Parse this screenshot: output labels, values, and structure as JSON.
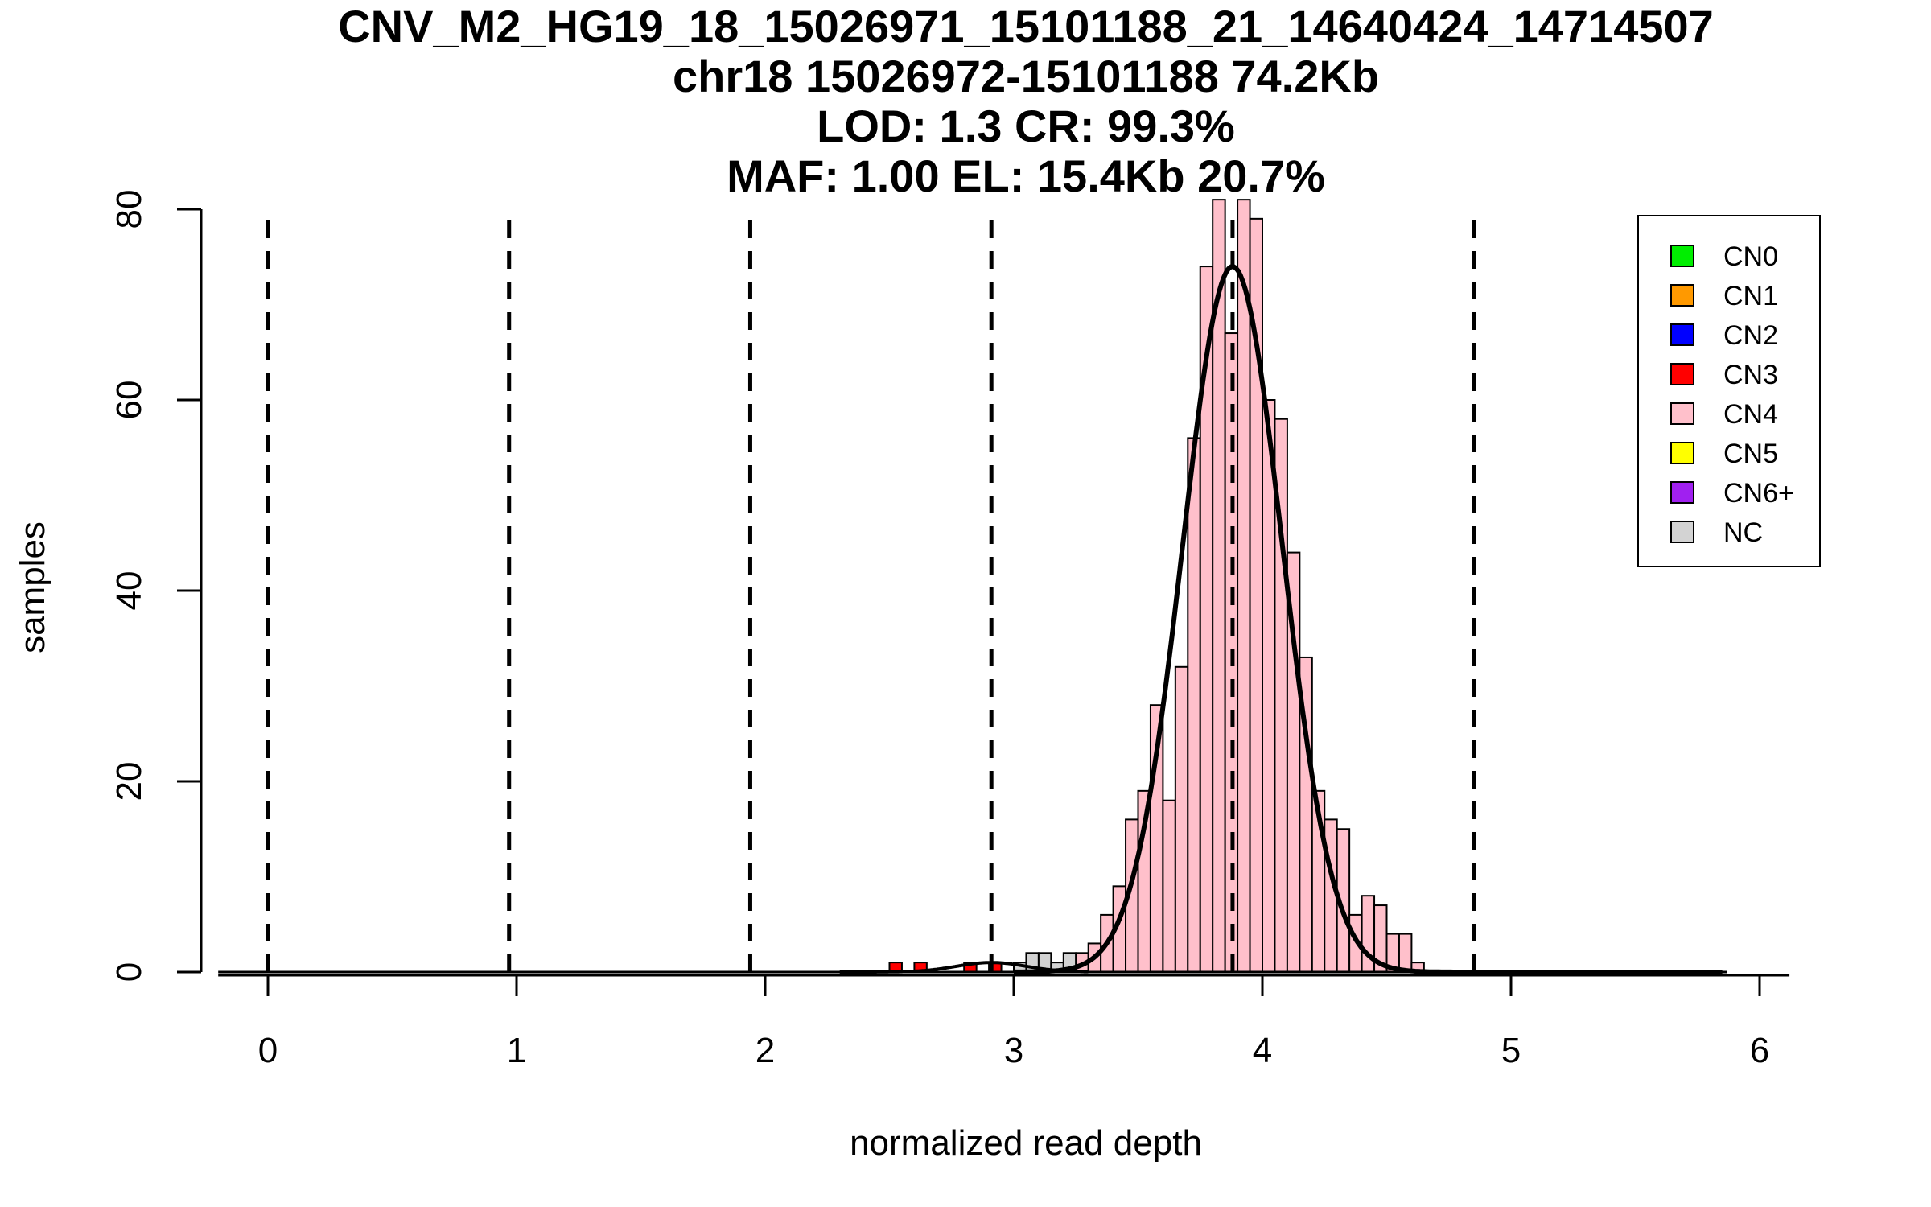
{
  "chart_data": {
    "type": "bar",
    "title": [
      "CNV_M2_HG19_18_15026971_15101188_21_14640424_14714507",
      "chr18 15026972-15101188 74.2Kb",
      "LOD: 1.3 CR: 99.3%",
      "MAF: 1.00 EL: 15.4Kb 20.7%"
    ],
    "xlabel": "normalized read depth",
    "ylabel": "samples",
    "xlim": [
      -0.2,
      6.1
    ],
    "ylim": [
      0,
      80
    ],
    "xticks": [
      0,
      1,
      2,
      3,
      4,
      5,
      6
    ],
    "yticks": [
      0,
      20,
      40,
      60,
      80
    ],
    "bin_width": 0.05,
    "dashed_lines_x": [
      0,
      0.97,
      1.94,
      2.91,
      3.88,
      4.85
    ],
    "colors": {
      "CN0": "#00ee00",
      "CN1": "#ff9900",
      "CN2": "#0000ff",
      "CN3": "#ff0000",
      "CN4": "#ffc0cb",
      "CN5": "#ffff00",
      "CN6+": "#a020f0",
      "NC": "#d3d3d3"
    },
    "legend": {
      "position": "top-right",
      "entries": [
        "CN0",
        "CN1",
        "CN2",
        "CN3",
        "CN4",
        "CN5",
        "CN6+",
        "NC"
      ]
    },
    "bars": [
      {
        "x": 2.525,
        "y": 1,
        "cls": "CN3"
      },
      {
        "x": 2.625,
        "y": 1,
        "cls": "CN3"
      },
      {
        "x": 2.825,
        "y": 1,
        "cls": "CN3"
      },
      {
        "x": 2.925,
        "y": 1,
        "cls": "CN3"
      },
      {
        "x": 3.025,
        "y": 1,
        "cls": "NC"
      },
      {
        "x": 3.075,
        "y": 2,
        "cls": "NC"
      },
      {
        "x": 3.125,
        "y": 2,
        "cls": "NC"
      },
      {
        "x": 3.175,
        "y": 1,
        "cls": "NC"
      },
      {
        "x": 3.225,
        "y": 2,
        "cls": "NC"
      },
      {
        "x": 3.275,
        "y": 2,
        "cls": "CN4"
      },
      {
        "x": 3.325,
        "y": 3,
        "cls": "CN4"
      },
      {
        "x": 3.375,
        "y": 6,
        "cls": "CN4"
      },
      {
        "x": 3.425,
        "y": 9,
        "cls": "CN4"
      },
      {
        "x": 3.475,
        "y": 16,
        "cls": "CN4"
      },
      {
        "x": 3.525,
        "y": 19,
        "cls": "CN4"
      },
      {
        "x": 3.575,
        "y": 28,
        "cls": "CN4"
      },
      {
        "x": 3.625,
        "y": 18,
        "cls": "CN4"
      },
      {
        "x": 3.675,
        "y": 32,
        "cls": "CN4"
      },
      {
        "x": 3.725,
        "y": 56,
        "cls": "CN4"
      },
      {
        "x": 3.775,
        "y": 74,
        "cls": "CN4"
      },
      {
        "x": 3.825,
        "y": 81,
        "cls": "CN4"
      },
      {
        "x": 3.875,
        "y": 67,
        "cls": "CN4"
      },
      {
        "x": 3.925,
        "y": 81,
        "cls": "CN4"
      },
      {
        "x": 3.975,
        "y": 79,
        "cls": "CN4"
      },
      {
        "x": 4.025,
        "y": 60,
        "cls": "CN4"
      },
      {
        "x": 4.075,
        "y": 58,
        "cls": "CN4"
      },
      {
        "x": 4.125,
        "y": 44,
        "cls": "CN4"
      },
      {
        "x": 4.175,
        "y": 33,
        "cls": "CN4"
      },
      {
        "x": 4.225,
        "y": 19,
        "cls": "CN4"
      },
      {
        "x": 4.275,
        "y": 16,
        "cls": "CN4"
      },
      {
        "x": 4.325,
        "y": 15,
        "cls": "CN4"
      },
      {
        "x": 4.375,
        "y": 6,
        "cls": "CN4"
      },
      {
        "x": 4.425,
        "y": 8,
        "cls": "CN4"
      },
      {
        "x": 4.475,
        "y": 7,
        "cls": "CN4"
      },
      {
        "x": 4.525,
        "y": 4,
        "cls": "CN4"
      },
      {
        "x": 4.575,
        "y": 4,
        "cls": "CN4"
      },
      {
        "x": 4.625,
        "y": 1,
        "cls": "CN4"
      }
    ],
    "fit_curves": [
      {
        "mean": 3.88,
        "sd": 0.2,
        "peak": 74,
        "from": 3.0,
        "to": 5.85
      },
      {
        "mean": 2.91,
        "sd": 0.14,
        "peak": 1,
        "from": 2.3,
        "to": 3.3
      }
    ]
  }
}
